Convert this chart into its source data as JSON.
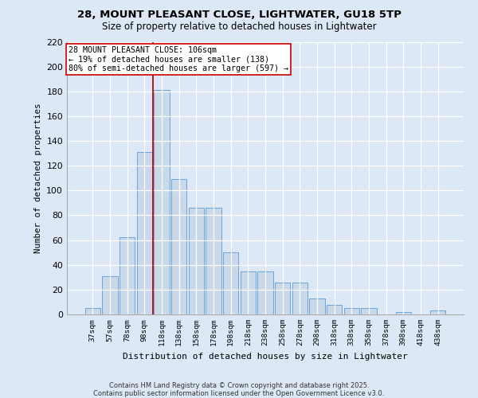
{
  "title1": "28, MOUNT PLEASANT CLOSE, LIGHTWATER, GU18 5TP",
  "title2": "Size of property relative to detached houses in Lightwater",
  "xlabel": "Distribution of detached houses by size in Lightwater",
  "ylabel": "Number of detached properties",
  "bar_labels": [
    "37sqm",
    "57sqm",
    "78sqm",
    "98sqm",
    "118sqm",
    "138sqm",
    "158sqm",
    "178sqm",
    "198sqm",
    "218sqm",
    "238sqm",
    "258sqm",
    "278sqm",
    "298sqm",
    "318sqm",
    "338sqm",
    "358sqm",
    "378sqm",
    "398sqm",
    "418sqm",
    "438sqm"
  ],
  "bar_values": [
    5,
    31,
    62,
    131,
    181,
    109,
    86,
    86,
    50,
    35,
    35,
    26,
    26,
    13,
    8,
    5,
    5,
    0,
    2,
    0,
    3
  ],
  "bar_color": "#c9d9ea",
  "bar_edge_color": "#5b9bd5",
  "vline_x_index": 3.5,
  "vline_color": "#cc0000",
  "annotation_text": "28 MOUNT PLEASANT CLOSE: 106sqm\n← 19% of detached houses are smaller (138)\n80% of semi-detached houses are larger (597) →",
  "annotation_box_color": "#ffffff",
  "annotation_border_color": "#cc0000",
  "ylim": [
    0,
    220
  ],
  "yticks": [
    0,
    20,
    40,
    60,
    80,
    100,
    120,
    140,
    160,
    180,
    200,
    220
  ],
  "bg_color": "#dce8f5",
  "plot_bg_color": "#dce8f5",
  "footer_line1": "Contains HM Land Registry data © Crown copyright and database right 2025.",
  "footer_line2": "Contains public sector information licensed under the Open Government Licence v3.0."
}
